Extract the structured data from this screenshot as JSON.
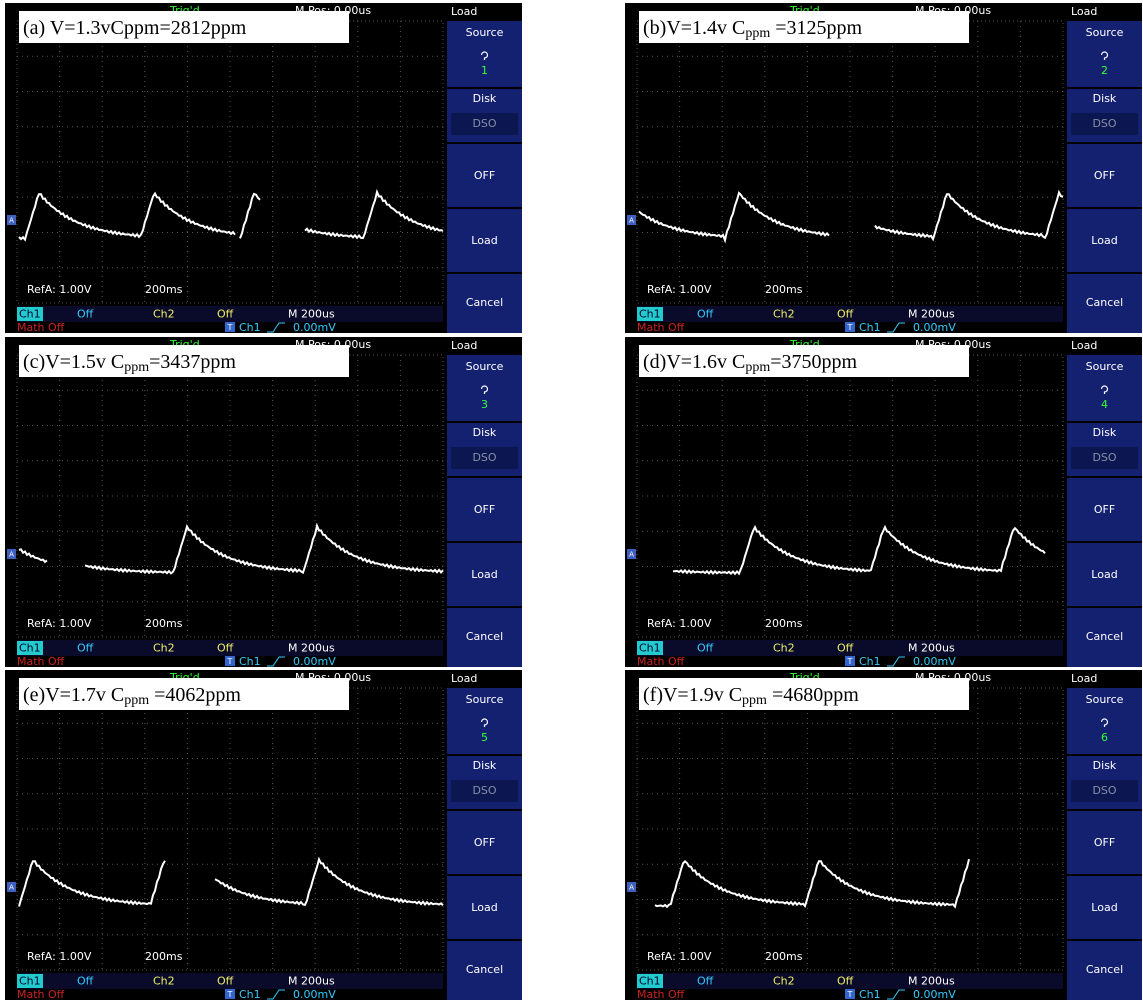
{
  "scope_ui": {
    "trig": "Trig'd",
    "mpos": "M Pos: 0.00us",
    "menu_title": "Load",
    "source": "Source",
    "disk": "Disk",
    "dso": "DSO",
    "off_btn": "OFF",
    "load_btn": "Load",
    "cancel": "Cancel",
    "refa": "RefA: 1.00V",
    "timebase": "200ms",
    "ch1": "Ch1",
    "ch1_state": "Off",
    "ch2": "Ch2",
    "ch2_state": "Off",
    "mtime": "M 200us",
    "math": "Math Off",
    "trig_icon": "T",
    "trig_src": "Ch1",
    "trig_level": "0.00mV",
    "ref_marker": "A"
  },
  "panels": [
    {
      "caption": [
        "(a) V=1.3vCppm=2812ppm"
      ],
      "source_num": "1"
    },
    {
      "caption": [
        "(b)V=1.4v C",
        "ppm",
        " =3125ppm"
      ],
      "source_num": "2"
    },
    {
      "caption": [
        "(c)V=1.5v C",
        "ppm",
        "=3437ppm"
      ],
      "source_num": "3"
    },
    {
      "caption": [
        "(d)V=1.6v C",
        "ppm",
        "=3750ppm"
      ],
      "source_num": "4"
    },
    {
      "caption": [
        "(e)V=1.7v C",
        "ppm",
        " =4062ppm"
      ],
      "source_num": "5"
    },
    {
      "caption": [
        "(f)V=1.9v C",
        "ppm",
        " =4680ppm"
      ],
      "source_num": "6"
    }
  ]
}
